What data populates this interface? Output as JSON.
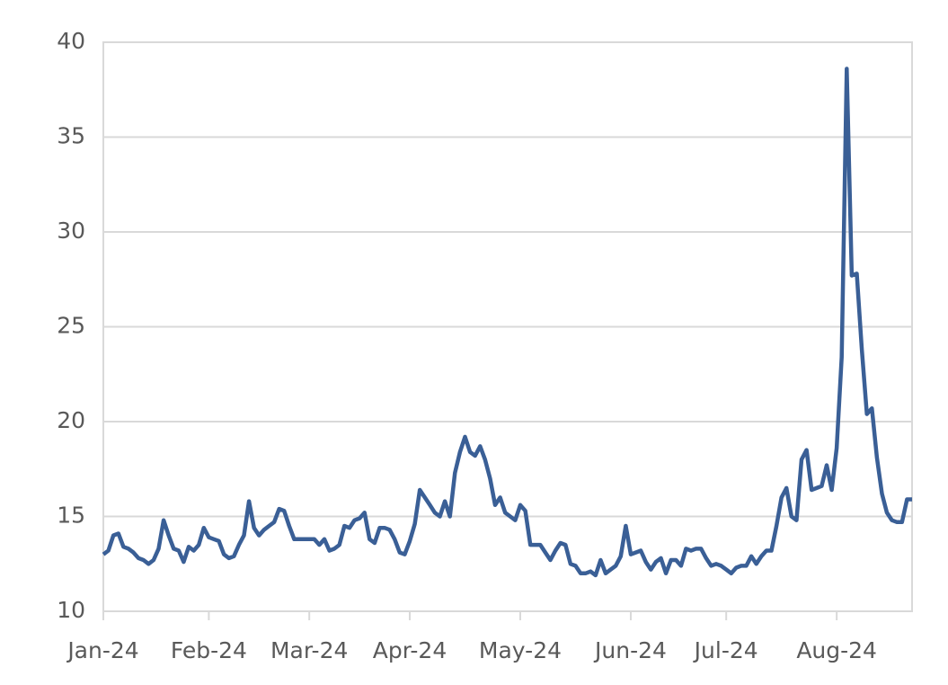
{
  "chart_data": {
    "type": "line",
    "categories": [
      "Jan-24",
      null,
      null,
      null,
      null,
      null,
      null,
      null,
      null,
      null,
      null,
      null,
      null,
      null,
      null,
      null,
      null,
      null,
      null,
      null,
      null,
      "Feb-24",
      null,
      null,
      null,
      null,
      null,
      null,
      null,
      null,
      null,
      null,
      null,
      null,
      null,
      null,
      null,
      null,
      null,
      null,
      null,
      "Mar-24",
      null,
      null,
      null,
      null,
      null,
      null,
      null,
      null,
      null,
      null,
      null,
      null,
      null,
      null,
      null,
      null,
      null,
      null,
      null,
      "Apr-24",
      null,
      null,
      null,
      null,
      null,
      null,
      null,
      null,
      null,
      null,
      null,
      null,
      null,
      null,
      null,
      null,
      null,
      null,
      null,
      null,
      null,
      "May-24",
      null,
      null,
      null,
      null,
      null,
      null,
      null,
      null,
      null,
      null,
      null,
      null,
      null,
      null,
      null,
      null,
      null,
      null,
      null,
      null,
      null,
      "Jun-24",
      null,
      null,
      null,
      null,
      null,
      null,
      null,
      null,
      null,
      null,
      null,
      null,
      null,
      null,
      null,
      null,
      null,
      null,
      "Jul-24",
      null,
      null,
      null,
      null,
      null,
      null,
      null,
      null,
      null,
      null,
      null,
      null,
      null,
      null,
      null,
      null,
      null,
      null,
      null,
      null,
      null,
      "Aug-24",
      null,
      null,
      null,
      null,
      null,
      null,
      null,
      null,
      null,
      null,
      null,
      null,
      null,
      null,
      null
    ],
    "series": [
      {
        "color": "#3a5f96",
        "values": [
          13.0,
          13.2,
          14.0,
          14.1,
          13.4,
          13.3,
          13.1,
          12.8,
          12.7,
          12.5,
          12.7,
          13.3,
          14.8,
          14.0,
          13.3,
          13.2,
          12.6,
          13.4,
          13.2,
          13.5,
          14.4,
          13.9,
          13.8,
          13.7,
          13.0,
          12.8,
          12.9,
          13.5,
          14.0,
          15.8,
          14.4,
          14.0,
          14.3,
          14.5,
          14.7,
          15.4,
          15.3,
          14.5,
          13.8,
          13.8,
          13.8,
          13.8,
          13.8,
          13.5,
          13.8,
          13.2,
          13.3,
          13.5,
          14.5,
          14.4,
          14.8,
          14.9,
          15.2,
          13.8,
          13.6,
          14.4,
          14.4,
          14.3,
          13.8,
          13.1,
          13.0,
          13.7,
          14.6,
          16.4,
          16.0,
          15.6,
          15.2,
          15.0,
          15.8,
          15.0,
          17.3,
          18.4,
          19.2,
          18.4,
          18.2,
          18.7,
          18.0,
          17.0,
          15.6,
          16.0,
          15.2,
          15.0,
          14.8,
          15.6,
          15.3,
          13.5,
          13.5,
          13.5,
          13.1,
          12.7,
          13.2,
          13.6,
          13.5,
          12.5,
          12.4,
          12.0,
          12.0,
          12.1,
          11.9,
          12.7,
          12.0,
          12.2,
          12.4,
          12.9,
          14.5,
          13.0,
          13.1,
          13.2,
          12.6,
          12.2,
          12.6,
          12.8,
          12.0,
          12.7,
          12.7,
          12.4,
          13.3,
          13.2,
          13.3,
          13.3,
          12.8,
          12.4,
          12.5,
          12.4,
          12.2,
          12.0,
          12.3,
          12.4,
          12.4,
          12.9,
          12.5,
          12.9,
          13.2,
          13.2,
          14.5,
          16.0,
          16.5,
          15.0,
          14.8,
          18.0,
          18.5,
          16.4,
          16.5,
          16.6,
          17.7,
          16.4,
          18.6,
          23.4,
          38.6,
          27.7,
          27.8,
          23.8,
          20.4,
          20.7,
          18.1,
          16.2,
          15.2,
          14.8,
          14.7,
          14.7,
          15.9,
          15.9
        ]
      }
    ],
    "ylim": [
      10,
      40
    ],
    "yticks": [
      10,
      15,
      20,
      25,
      30,
      35,
      40
    ],
    "grid": true
  }
}
